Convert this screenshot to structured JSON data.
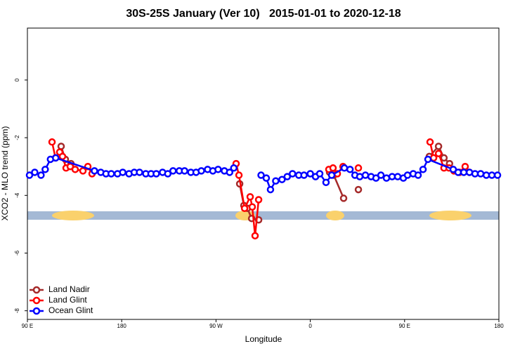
{
  "chart_data": {
    "type": "line",
    "title": "30S-25S January (Ver 10)   2015-01-01 to 2020-12-18",
    "x_label": "Longitude",
    "y_label": "XCO2 - MLO trend (ppm)",
    "xlim": [
      90,
      540
    ],
    "ylim": [
      -8.3,
      1.8
    ],
    "xticks": [
      {
        "value": 90,
        "label": "90 E"
      },
      {
        "value": 180,
        "label": "180"
      },
      {
        "value": 270,
        "label": "90 W"
      },
      {
        "value": 360,
        "label": "0"
      },
      {
        "value": 450,
        "label": "90 E"
      },
      {
        "value": 540,
        "label": "180"
      }
    ],
    "yticks": [
      0,
      -2,
      -4,
      -6,
      -8
    ],
    "legend": "bottomleft",
    "series": [
      {
        "name": "Land Nadir",
        "color": "#a52a2a",
        "x": [
          122.2,
          126.2,
          131.6,
          null,
          292.6,
          296.6,
          299.9,
          304,
          310.7,
          null,
          378.4,
          382.4,
          391.8,
          null,
          405.9,
          null,
          473.6,
          482.4,
          487.6,
          492.9
        ],
        "values": [
          -2.3,
          -2.75,
          -2.9,
          null,
          -3.6,
          -4.35,
          -4.45,
          -4.8,
          -4.85,
          null,
          -3.2,
          -3.3,
          -4.1,
          null,
          -3.8,
          null,
          -2.65,
          -2.3,
          -2.7,
          -2.9
        ]
      },
      {
        "name": "Land Glint",
        "color": "#ff0000",
        "x": [
          113.5,
          116.8,
          120.8,
          123.5,
          126.9,
          130.9,
          135.6,
          143,
          147.7,
          151.7,
          null,
          289.2,
          291.9,
          297.3,
          302.6,
          304.6,
          307.3,
          310.7,
          null,
          377.7,
          381.7,
          385.8,
          391.2,
          null,
          405.9,
          null,
          474.3,
          477.7,
          482.4,
          487.6,
          492.4,
          497.1,
          502.5,
          507.8,
          511.9
        ],
        "values": [
          -2.15,
          -2.7,
          -2.5,
          -2.65,
          -3.05,
          -3.0,
          -3.1,
          -3.15,
          -3.0,
          -3.25,
          null,
          -2.9,
          -3.3,
          -4.45,
          -4.05,
          -4.4,
          -5.4,
          -4.15,
          null,
          -3.1,
          -3.05,
          -3.25,
          -3.0,
          null,
          -3.05,
          null,
          -2.15,
          -2.7,
          -2.55,
          -3.05,
          -3.05,
          -3.15,
          -3.2,
          -3.0,
          -3.2
        ]
      },
      {
        "name": "Ocean Glint",
        "color": "#0000ff",
        "x": [
          92,
          97,
          103,
          107,
          112,
          117,
          154,
          160,
          165,
          170,
          176,
          181,
          187,
          192,
          197,
          203,
          208,
          213,
          219,
          224,
          229,
          235,
          240,
          246,
          251,
          256,
          262,
          267,
          272,
          278,
          283,
          287,
          null,
          313,
          318,
          322,
          327,
          333,
          338,
          343,
          349,
          354,
          360,
          365,
          369,
          375,
          380.4,
          392.5,
          397.9,
          402.6,
          407.2,
          412.6,
          418,
          422.7,
          427.4,
          432.7,
          438.1,
          443.4,
          448.8,
          452.8,
          458.2,
          462.9,
          467.6,
          472.3,
          496.4,
          501.1,
          506.5,
          511.9,
          517.2,
          522.6,
          528,
          533.3,
          538.7
        ],
        "values": [
          -3.3,
          -3.2,
          -3.3,
          -3.1,
          -2.75,
          -2.7,
          -3.15,
          -3.2,
          -3.25,
          -3.25,
          -3.25,
          -3.2,
          -3.25,
          -3.2,
          -3.2,
          -3.25,
          -3.25,
          -3.25,
          -3.2,
          -3.25,
          -3.15,
          -3.15,
          -3.15,
          -3.2,
          -3.2,
          -3.15,
          -3.1,
          -3.15,
          -3.1,
          -3.15,
          -3.2,
          -3.05,
          null,
          -3.3,
          -3.4,
          -3.8,
          -3.5,
          -3.45,
          -3.35,
          -3.25,
          -3.3,
          -3.3,
          -3.25,
          -3.35,
          -3.25,
          -3.55,
          -3.3,
          -3.05,
          -3.1,
          -3.3,
          -3.35,
          -3.3,
          -3.35,
          -3.4,
          -3.3,
          -3.4,
          -3.35,
          -3.35,
          -3.4,
          -3.3,
          -3.25,
          -3.3,
          -3.1,
          -2.75,
          -3.1,
          -3.2,
          -3.2,
          -3.2,
          -3.25,
          -3.25,
          -3.3,
          -3.3,
          -3.3
        ]
      }
    ]
  }
}
